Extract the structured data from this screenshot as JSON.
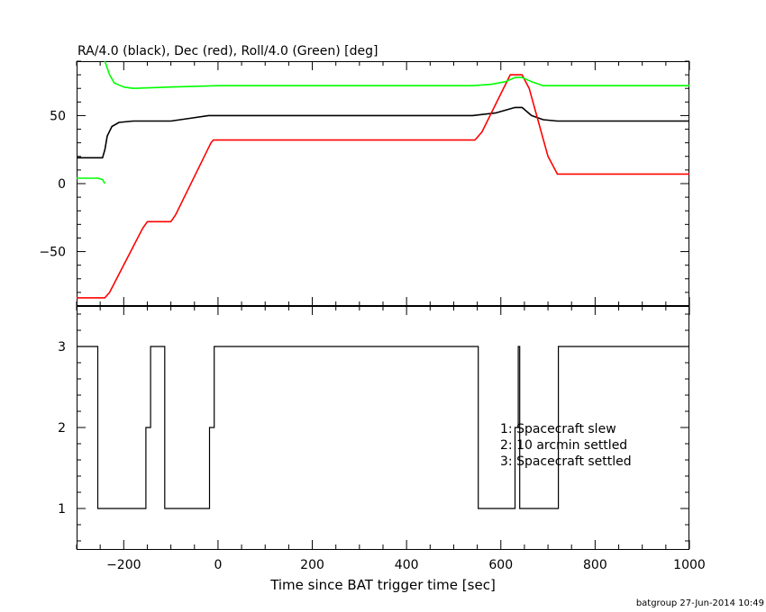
{
  "chart_data": [
    {
      "type": "line",
      "title": "RA/4.0 (black), Dec (red), Roll/4.0 (Green) [deg]",
      "xlabel": "",
      "ylabel": "",
      "xlim": [
        -300,
        1000
      ],
      "ylim": [
        -90,
        90
      ],
      "y_ticks": [
        -50,
        0,
        50
      ],
      "y_tick_labels": [
        "−50",
        "0",
        "50"
      ],
      "grid": false,
      "series": [
        {
          "color": "#000000",
          "points": [
            [
              -300,
              19
            ],
            [
              -245,
              19
            ],
            [
              -240,
              25
            ],
            [
              -235,
              35
            ],
            [
              -225,
              42
            ],
            [
              -210,
              45
            ],
            [
              -180,
              46
            ],
            [
              -100,
              46
            ],
            [
              -60,
              48
            ],
            [
              -20,
              50
            ],
            [
              0,
              50
            ],
            [
              300,
              50
            ],
            [
              540,
              50
            ],
            [
              590,
              52
            ],
            [
              630,
              56
            ],
            [
              645,
              56
            ],
            [
              665,
              50
            ],
            [
              690,
              47
            ],
            [
              720,
              46
            ],
            [
              1000,
              46
            ]
          ]
        },
        {
          "color": "#ff0000",
          "points": [
            [
              -300,
              -84
            ],
            [
              -240,
              -84
            ],
            [
              -230,
              -80
            ],
            [
              -160,
              -33
            ],
            [
              -150,
              -28
            ],
            [
              -100,
              -28
            ],
            [
              -90,
              -23
            ],
            [
              -15,
              30
            ],
            [
              -10,
              32
            ],
            [
              545,
              32
            ],
            [
              560,
              38
            ],
            [
              620,
              80
            ],
            [
              645,
              80
            ],
            [
              660,
              70
            ],
            [
              700,
              20
            ],
            [
              720,
              7
            ],
            [
              1000,
              7
            ]
          ]
        },
        {
          "color": "#00ff00",
          "points": [
            [
              -300,
              4
            ],
            [
              -255,
              4
            ],
            [
              -245,
              3
            ],
            [
              -240,
              0
            ]
          ]
        },
        {
          "color": "#00ff00",
          "points": [
            [
              -240,
              90
            ],
            [
              -230,
              80
            ],
            [
              -220,
              74
            ],
            [
              -200,
              71
            ],
            [
              -180,
              70
            ],
            [
              -100,
              71
            ],
            [
              0,
              72
            ],
            [
              300,
              72
            ],
            [
              540,
              72
            ],
            [
              580,
              73
            ],
            [
              610,
              75
            ],
            [
              630,
              78
            ],
            [
              645,
              78
            ],
            [
              665,
              75
            ],
            [
              690,
              72
            ],
            [
              720,
              72
            ],
            [
              1000,
              72
            ]
          ]
        }
      ]
    },
    {
      "type": "line",
      "title": "",
      "xlabel": "Time since BAT trigger time [sec]",
      "ylabel": "",
      "xlim": [
        -300,
        1000
      ],
      "ylim": [
        0.5,
        3.5
      ],
      "y_ticks": [
        1,
        2,
        3
      ],
      "y_tick_labels": [
        "1",
        "2",
        "3"
      ],
      "x_ticks": [
        -200,
        0,
        200,
        400,
        600,
        800,
        1000
      ],
      "x_tick_labels": [
        "−200",
        "0",
        "200",
        "400",
        "600",
        "800",
        "1000"
      ],
      "grid": false,
      "annotations": [
        "1: Spacecraft slew",
        "2: 10 arcmin settled",
        "3: Spacecraft settled"
      ],
      "series": [
        {
          "color": "#000000",
          "step": true,
          "points": [
            [
              -300,
              3
            ],
            [
              -255,
              3
            ],
            [
              -255,
              1
            ],
            [
              -153,
              1
            ],
            [
              -153,
              2
            ],
            [
              -143,
              2
            ],
            [
              -143,
              3
            ],
            [
              -113,
              3
            ],
            [
              -113,
              1
            ],
            [
              -18,
              1
            ],
            [
              -18,
              2
            ],
            [
              -8,
              2
            ],
            [
              -8,
              3
            ],
            [
              552,
              3
            ],
            [
              552,
              1
            ],
            [
              630,
              1
            ],
            [
              630,
              2
            ],
            [
              637,
              2
            ],
            [
              637,
              3
            ],
            [
              640,
              3
            ],
            [
              640,
              1
            ],
            [
              722,
              1
            ],
            [
              722,
              3
            ],
            [
              1000,
              3
            ]
          ]
        }
      ]
    }
  ],
  "footer": {
    "stamp": "batgroup 27-Jun-2014 10:49"
  }
}
